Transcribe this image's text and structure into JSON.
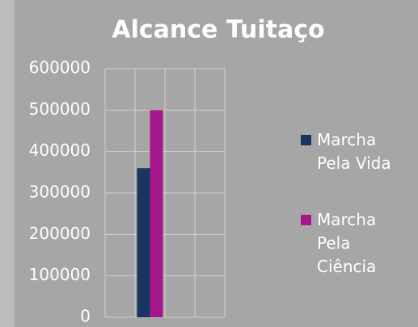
{
  "chart_data": {
    "type": "bar",
    "title": "Alcance Tuitaço",
    "categories": [
      null,
      null,
      null,
      null
    ],
    "series": [
      {
        "name": "Marcha Pela Vida",
        "color": "#17375e",
        "values": [
          null,
          360000,
          null,
          null
        ]
      },
      {
        "name": "Marcha Pela Ciência",
        "color": "#a5168a",
        "values": [
          null,
          500000,
          null,
          null
        ]
      }
    ],
    "ylim": [
      0,
      600000
    ],
    "yticks": [
      0,
      100000,
      200000,
      300000,
      400000,
      500000,
      600000
    ],
    "grid": true,
    "legend": "right"
  }
}
